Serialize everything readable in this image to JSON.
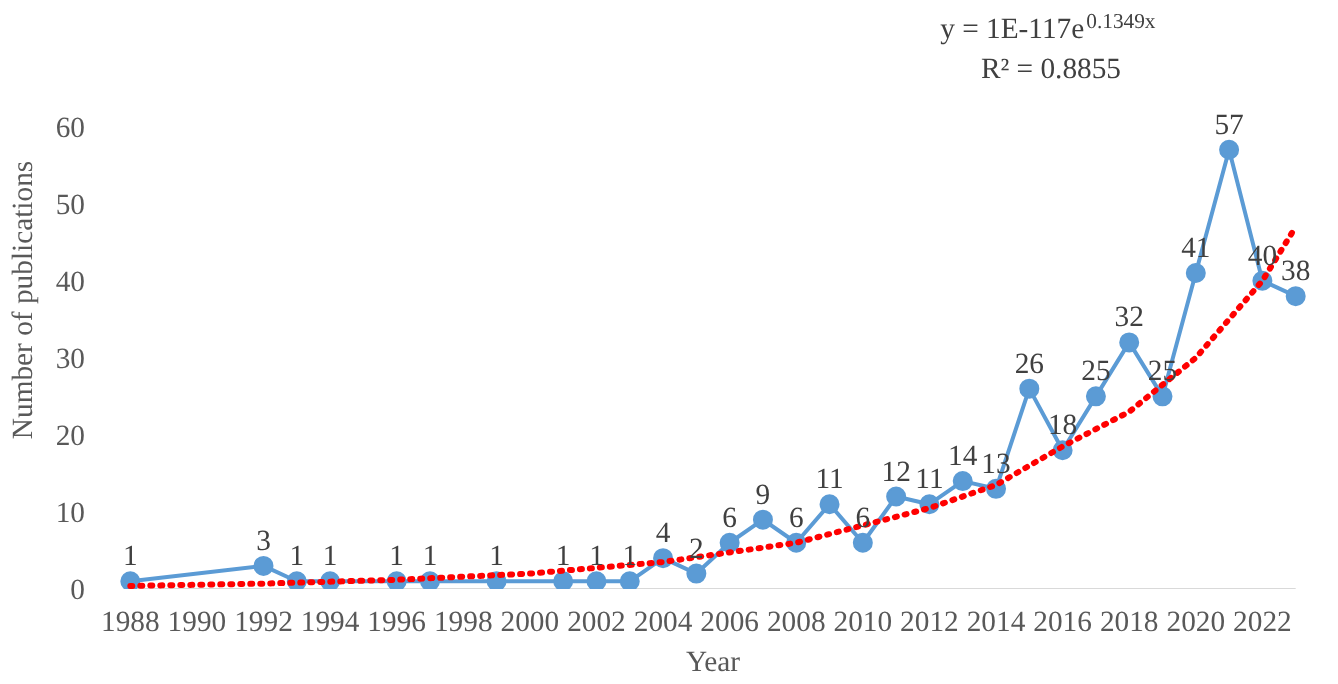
{
  "chart_data": {
    "type": "line",
    "xlabel": "Year",
    "ylabel": "Number of publications",
    "xlim": [
      1988,
      2023
    ],
    "xticks": [
      1988,
      1990,
      1992,
      1994,
      1996,
      1998,
      2000,
      2002,
      2004,
      2006,
      2008,
      2010,
      2012,
      2014,
      2016,
      2018,
      2020,
      2022
    ],
    "ylim": [
      0,
      60
    ],
    "yticks": [
      0,
      10,
      20,
      30,
      40,
      50,
      60
    ],
    "grid": false,
    "annotations": [
      "y = 1E-117e$^{0.1349x}$",
      "R² = 0.8855"
    ],
    "series": [
      {
        "color": "#5b9bd5",
        "marker": "circle",
        "line_style": "solid",
        "x": [
          1988,
          1992,
          1993,
          1994,
          1996,
          1997,
          1999,
          2001,
          2002,
          2003,
          2004,
          2005,
          2006,
          2007,
          2008,
          2009,
          2010,
          2011,
          2012,
          2013,
          2014,
          2015,
          2016,
          2017,
          2018,
          2019,
          2020,
          2021,
          2022,
          2023
        ],
        "values": [
          1,
          3,
          1,
          1,
          1,
          1,
          1,
          1,
          1,
          1,
          4,
          2,
          6,
          9,
          6,
          11,
          6,
          12,
          11,
          14,
          13,
          26,
          18,
          25,
          32,
          25,
          41,
          57,
          40,
          38
        ],
        "value_labels": [
          "1",
          "3",
          "1",
          "1",
          "1",
          "1",
          "1",
          "1",
          "1",
          "1",
          "4",
          "2",
          "6",
          "9",
          "6",
          "11",
          "6",
          "12",
          "11",
          "14",
          "13",
          "26",
          "18",
          "25",
          "32",
          "25",
          "41",
          "57",
          "40",
          "38"
        ]
      },
      {
        "type": "line",
        "color": "#ff0000",
        "marker": "none",
        "line_style": "dotted",
        "x": [
          1988,
          1992,
          1996,
          2000,
          2004,
          2008,
          2012,
          2014,
          2016,
          2018,
          2020,
          2022,
          2023
        ],
        "values": [
          0.4,
          0.7,
          1.2,
          2,
          3.5,
          6,
          10.5,
          13.5,
          18.5,
          23,
          30,
          40,
          47
        ]
      }
    ]
  }
}
